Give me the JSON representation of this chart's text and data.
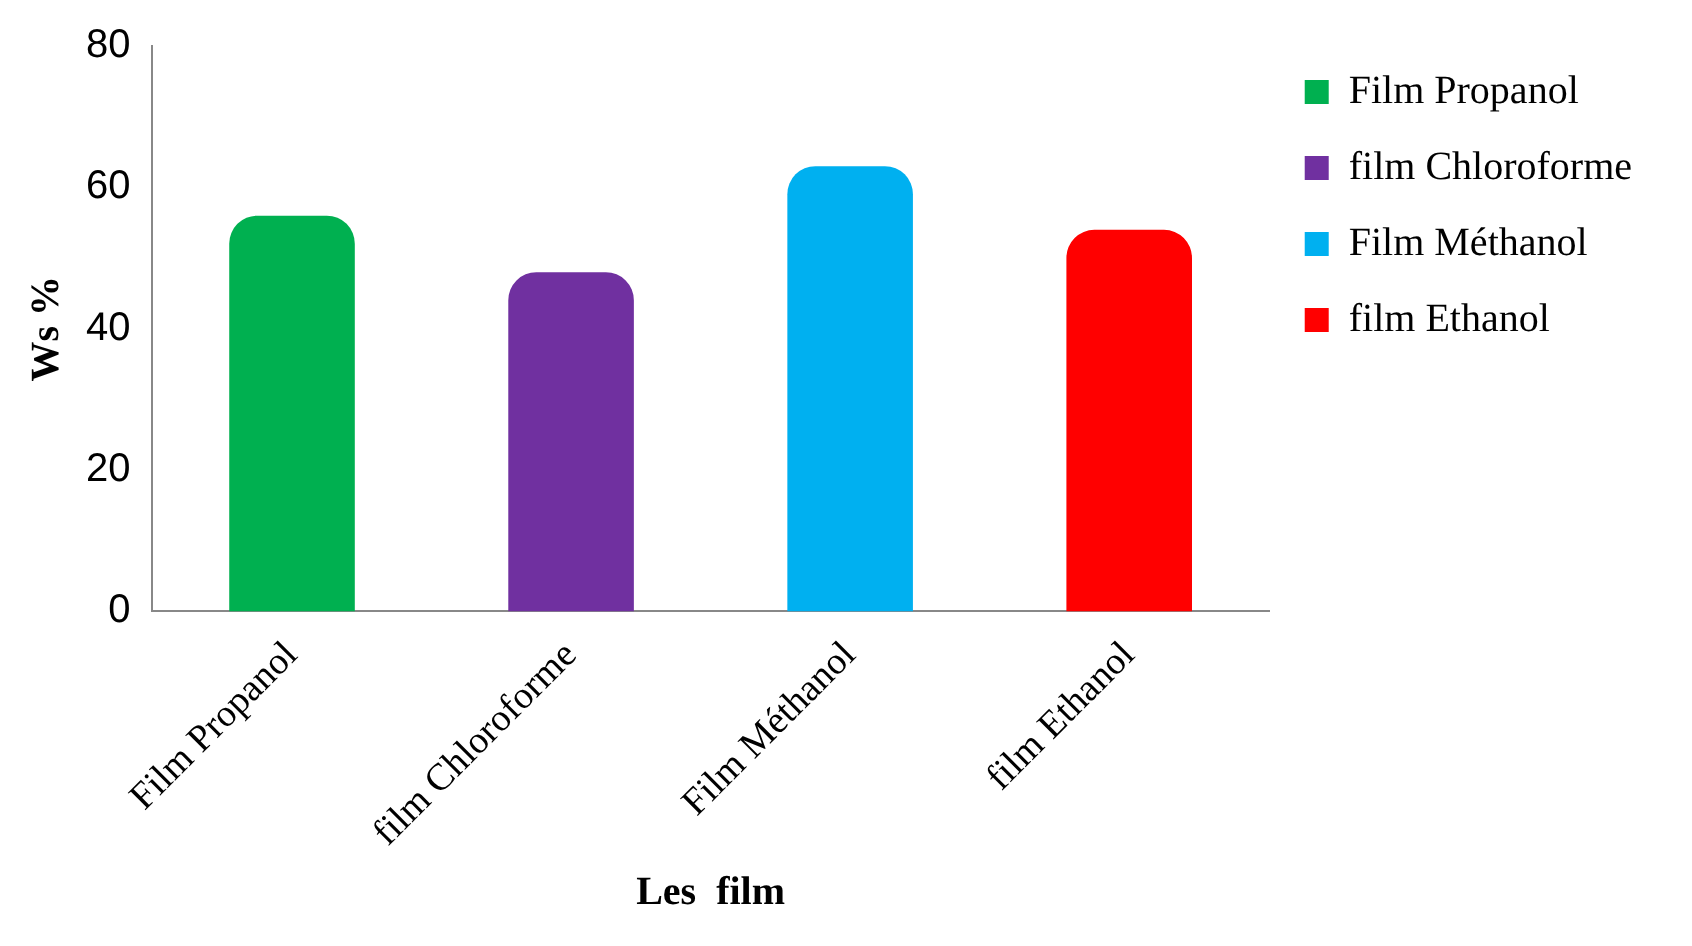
{
  "chart_data": {
    "type": "bar",
    "xlabel": "Les  film",
    "ylabel": "Ws %",
    "categories": [
      "Film Propanol",
      "film Chloroforme",
      "Film Méthanol",
      "film Ethanol"
    ],
    "series": [
      {
        "name": "Film Propanol",
        "color": "#00b050",
        "values": [
          56,
          null,
          null,
          null
        ]
      },
      {
        "name": "film Chloroforme",
        "color": "#7030a0",
        "values": [
          null,
          48,
          null,
          null
        ]
      },
      {
        "name": "Film Méthanol",
        "color": "#00b0f0",
        "values": [
          null,
          null,
          63,
          null
        ]
      },
      {
        "name": "film Ethanol",
        "color": "#ff0000",
        "values": [
          null,
          null,
          null,
          54
        ]
      }
    ],
    "ylim": [
      0,
      80
    ],
    "yticks": [
      0,
      20,
      40,
      60,
      80
    ],
    "grid": false,
    "legend": "right"
  }
}
